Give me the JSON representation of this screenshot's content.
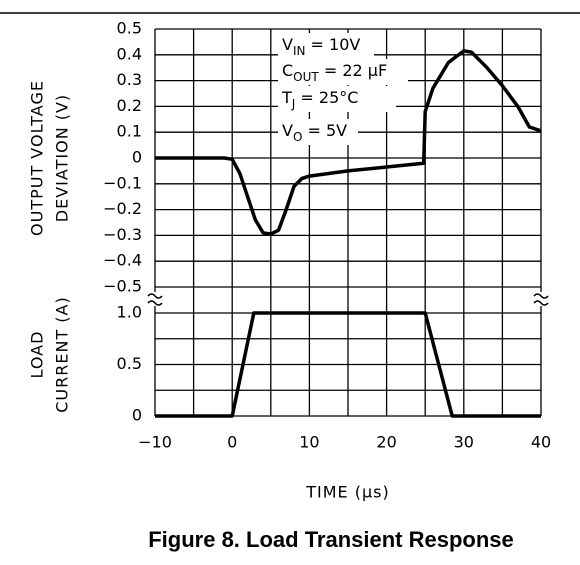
{
  "chart_data": [
    {
      "type": "line",
      "ylabel": [
        "OUTPUT VOLTAGE",
        "DEVIATION (V)"
      ],
      "annotations": [
        {
          "text": "V",
          "sub": "IN",
          "tail": " = 10V"
        },
        {
          "text": "C",
          "sub": "OUT",
          "tail": " = 22 μF"
        },
        {
          "text": "T",
          "sub": "J",
          "tail": " = 25°C"
        },
        {
          "text": "V",
          "sub": "O",
          "tail": " = 5V"
        }
      ],
      "x": [
        -10,
        -1,
        0,
        1,
        2,
        3,
        4,
        5,
        6,
        7,
        8,
        9,
        10,
        15,
        20,
        24.8,
        25,
        26,
        28,
        30,
        31,
        33,
        35,
        37,
        38.5,
        40
      ],
      "series": [
        {
          "color": "#000000",
          "values": [
            0,
            0,
            -0.005,
            -0.06,
            -0.15,
            -0.24,
            -0.29,
            -0.295,
            -0.28,
            -0.2,
            -0.11,
            -0.08,
            -0.07,
            -0.05,
            -0.035,
            -0.02,
            0.18,
            0.27,
            0.37,
            0.415,
            0.41,
            0.35,
            0.28,
            0.2,
            0.12,
            0.105
          ]
        }
      ],
      "xlim": [
        -10,
        40
      ],
      "xticks": [
        -10,
        0,
        10,
        20,
        30,
        40
      ],
      "ylim": [
        -0.5,
        0.5
      ],
      "yticks": [
        {
          "value": -0.5,
          "label": "−0.5"
        },
        {
          "value": -0.4,
          "label": "−0.4"
        },
        {
          "value": -0.3,
          "label": "−0.3"
        },
        {
          "value": -0.2,
          "label": "−0.2"
        },
        {
          "value": -0.1,
          "label": "−0.1"
        },
        0,
        0.1,
        0.2,
        0.3,
        0.4,
        0.5
      ],
      "grid": true
    },
    {
      "type": "line",
      "ylabel": [
        "LOAD",
        "CURRENT (A)"
      ],
      "xlabel": "TIME (μs)",
      "x": [
        -10,
        0,
        2.8,
        25,
        28.5,
        40
      ],
      "series": [
        {
          "color": "#000000",
          "values": [
            0,
            0,
            1,
            1,
            0,
            0
          ]
        }
      ],
      "xlim": [
        -10,
        40
      ],
      "xticks": [
        {
          "value": -10,
          "label": "−10"
        },
        0,
        10,
        20,
        30,
        40
      ],
      "ylim": [
        0,
        1
      ],
      "yticks": [
        0,
        0.5,
        {
          "value": 1,
          "label": "1.0"
        }
      ],
      "grid": true
    }
  ],
  "caption": "Figure 8. Load Transient Response"
}
